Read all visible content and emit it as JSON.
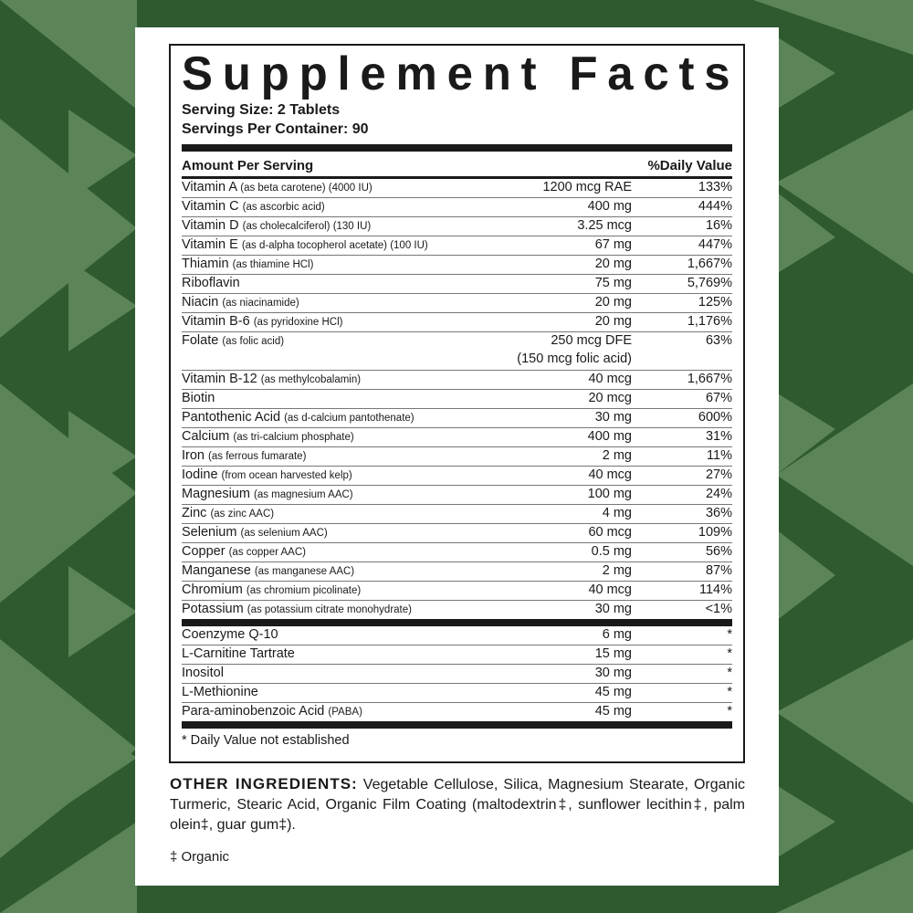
{
  "colors": {
    "background": "#2f5a2f",
    "pattern": "#5c8459",
    "panel": "#ffffff",
    "text": "#1a1a1a"
  },
  "title": "Supplement Facts",
  "serving_size": "Serving Size: 2 Tablets",
  "servings_per_container": "Servings Per Container: 90",
  "header": {
    "amount": "Amount Per Serving",
    "dv": "%Daily Value"
  },
  "nutrients": [
    {
      "name": "Vitamin A",
      "detail": "(as beta carotene) (4000 IU)",
      "amount": "1200 mcg RAE",
      "dv": "133%"
    },
    {
      "name": "Vitamin C",
      "detail": "(as ascorbic acid)",
      "amount": "400 mg",
      "dv": "444%"
    },
    {
      "name": "Vitamin D",
      "detail": "(as cholecalciferol) (130 IU)",
      "amount": "3.25 mcg",
      "dv": "16%"
    },
    {
      "name": "Vitamin E",
      "detail": "(as d-alpha tocopherol acetate) (100 IU)",
      "amount": "67 mg",
      "dv": "447%"
    },
    {
      "name": "Thiamin",
      "detail": "(as thiamine HCl)",
      "amount": "20 mg",
      "dv": "1,667%"
    },
    {
      "name": "Riboflavin",
      "detail": "",
      "amount": "75 mg",
      "dv": "5,769%"
    },
    {
      "name": "Niacin",
      "detail": "(as niacinamide)",
      "amount": "20 mg",
      "dv": "125%"
    },
    {
      "name": "Vitamin B-6",
      "detail": "(as pyridoxine HCl)",
      "amount": "20 mg",
      "dv": "1,176%"
    },
    {
      "name": "Folate",
      "detail": "(as folic acid)",
      "amount": "250 mcg DFE",
      "amount2": "(150 mcg folic acid)",
      "dv": "63%"
    },
    {
      "name": "Vitamin B-12",
      "detail": "(as methylcobalamin)",
      "amount": "40 mcg",
      "dv": "1,667%"
    },
    {
      "name": "Biotin",
      "detail": "",
      "amount": "20 mcg",
      "dv": "67%"
    },
    {
      "name": "Pantothenic Acid",
      "detail": "(as d-calcium pantothenate)",
      "amount": "30 mg",
      "dv": "600%"
    },
    {
      "name": "Calcium",
      "detail": "(as tri-calcium phosphate)",
      "amount": "400 mg",
      "dv": "31%"
    },
    {
      "name": "Iron",
      "detail": "(as ferrous fumarate)",
      "amount": "2 mg",
      "dv": "11%"
    },
    {
      "name": "Iodine",
      "detail": "(from ocean harvested kelp)",
      "amount": "40 mcg",
      "dv": "27%"
    },
    {
      "name": "Magnesium",
      "detail": "(as magnesium AAC)",
      "amount": "100 mg",
      "dv": "24%"
    },
    {
      "name": "Zinc",
      "detail": "(as zinc AAC)",
      "amount": "4 mg",
      "dv": "36%"
    },
    {
      "name": "Selenium",
      "detail": "(as selenium AAC)",
      "amount": "60 mcg",
      "dv": "109%"
    },
    {
      "name": "Copper",
      "detail": "(as copper AAC)",
      "amount": "0.5 mg",
      "dv": "56%"
    },
    {
      "name": "Manganese",
      "detail": "(as manganese AAC)",
      "amount": "2 mg",
      "dv": "87%"
    },
    {
      "name": "Chromium",
      "detail": "(as chromium picolinate)",
      "amount": "40 mcg",
      "dv": "114%"
    },
    {
      "name": "Potassium",
      "detail": "(as potassium citrate monohydrate)",
      "amount": "30 mg",
      "dv": "<1%"
    }
  ],
  "other_nutrients": [
    {
      "name": "Coenzyme Q-10",
      "detail": "",
      "amount": "6 mg",
      "dv": "*"
    },
    {
      "name": "L-Carnitine Tartrate",
      "detail": "",
      "amount": "15 mg",
      "dv": "*"
    },
    {
      "name": "Inositol",
      "detail": "",
      "amount": "30 mg",
      "dv": "*"
    },
    {
      "name": "L-Methionine",
      "detail": "",
      "amount": "45 mg",
      "dv": "*"
    },
    {
      "name": "Para-aminobenzoic Acid",
      "detail": "(PABA)",
      "amount": "45 mg",
      "dv": "*"
    }
  ],
  "footnote": "* Daily Value not established",
  "other_ingredients": {
    "label": "OTHER INGREDIENTS:",
    "text": "Vegetable Cellulose, Silica, Magnesium Stearate, Organic Turmeric, Stearic Acid, Organic Film Coating (maltodextrin‡, sunflower lecithin‡, palm olein‡, guar gum‡)."
  },
  "organic_note": "‡ Organic"
}
